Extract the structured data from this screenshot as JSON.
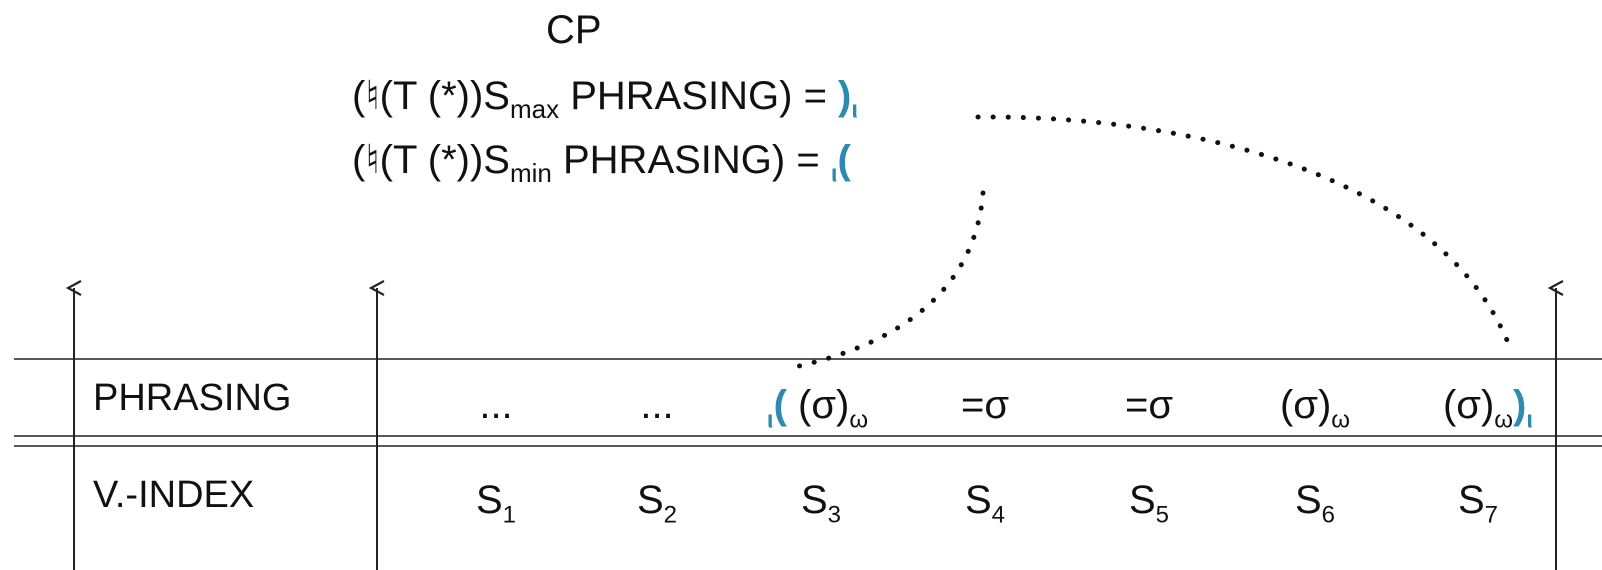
{
  "header": {
    "title": "CP"
  },
  "rules": [
    {
      "lhs": "(♮(T (*))S",
      "sub": "max",
      "rest": " PHRASING) = ",
      "marker": ")",
      "marker_sub": "ι"
    },
    {
      "lhs": "(♮(T (*))S",
      "sub": "min",
      "rest": "  PHRASING) = ",
      "marker_pre": "ι",
      "marker": "("
    }
  ],
  "rows": {
    "phrasing": {
      "label": "PHRASING",
      "cells": [
        {
          "text": "..."
        },
        {
          "text": "..."
        },
        {
          "pre_sub": "ι",
          "pre": "(",
          "text": " (σ)",
          "sub": "ω"
        },
        {
          "text": "=σ"
        },
        {
          "text": "=σ"
        },
        {
          "text": "(σ)",
          "sub": "ω"
        },
        {
          "text": "(σ)",
          "sub": "ω",
          "post": ")",
          "post_sub": "ι"
        }
      ]
    },
    "vindex": {
      "label": "V.-INDEX",
      "cells": [
        {
          "text": "S",
          "sub": "1"
        },
        {
          "text": "S",
          "sub": "2"
        },
        {
          "text": "S",
          "sub": "3"
        },
        {
          "text": "S",
          "sub": "4"
        },
        {
          "text": "S",
          "sub": "5"
        },
        {
          "text": "S",
          "sub": "6"
        },
        {
          "text": "S",
          "sub": "7"
        }
      ]
    }
  },
  "colors": {
    "accent": "#2e8bb0",
    "text": "#111111",
    "lines": "#222222"
  }
}
